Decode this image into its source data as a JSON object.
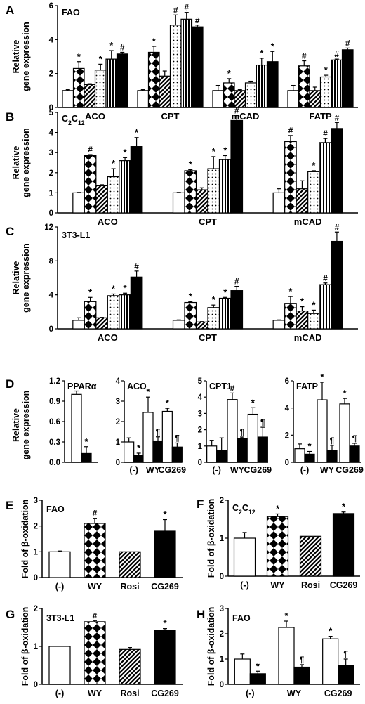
{
  "figure": {
    "background": "#ffffff",
    "ink": "#000000"
  },
  "patterns": [
    "white",
    "diamond",
    "diagonal",
    "dots",
    "vertical",
    "black"
  ],
  "markers": {
    "hash": "#",
    "star": "*",
    "para": "¶"
  },
  "chart_data": [
    {
      "id": "A",
      "type": "bar",
      "panel_label": "A",
      "inset_label": "FAO",
      "ylabel": [
        "Relative",
        "gene expression"
      ],
      "ylim": [
        0,
        6
      ],
      "yticks": [
        0,
        2,
        4,
        6
      ],
      "categories": [
        "ACO",
        "CPT",
        "mCAD",
        "FATP"
      ],
      "values": [
        [
          1.0,
          2.3,
          1.35,
          2.2,
          2.85,
          3.15
        ],
        [
          1.0,
          3.25,
          1.85,
          4.85,
          5.2,
          4.75
        ],
        [
          1.0,
          1.45,
          1.0,
          1.45,
          2.5,
          2.7
        ],
        [
          1.0,
          2.45,
          1.0,
          1.8,
          2.8,
          3.4
        ]
      ],
      "errors": [
        [
          0.05,
          0.4,
          0.05,
          0.35,
          0.5,
          0.1
        ],
        [
          0.05,
          0.35,
          0.3,
          0.6,
          0.4,
          0.1
        ],
        [
          0.3,
          0.25,
          0.05,
          0.1,
          0.4,
          0.6
        ],
        [
          0.3,
          0.3,
          0.2,
          0.1,
          0.05,
          0.1
        ]
      ],
      "markers": [
        [
          "",
          "*",
          "",
          "*",
          "*",
          "#"
        ],
        [
          "",
          "*",
          "",
          "#",
          "#",
          "#"
        ],
        [
          "",
          "*",
          "",
          "",
          "*",
          "*"
        ],
        [
          "",
          "#",
          "",
          "*",
          "#",
          "#"
        ]
      ]
    },
    {
      "id": "B",
      "type": "bar",
      "panel_label": "B",
      "inset_label": "C2C12",
      "ylabel": [
        "Relative",
        "gene expression"
      ],
      "ylim": [
        0,
        5
      ],
      "yticks": [
        0,
        1,
        2,
        3,
        4,
        5
      ],
      "categories": [
        "ACO",
        "CPT",
        "mCAD"
      ],
      "values": [
        [
          1.0,
          2.85,
          1.35,
          1.8,
          2.6,
          3.3
        ],
        [
          1.0,
          2.1,
          1.15,
          2.2,
          2.65,
          4.6
        ],
        [
          1.0,
          3.55,
          1.2,
          2.05,
          3.5,
          4.2
        ]
      ],
      "errors": [
        [
          0.02,
          0.05,
          0.05,
          0.4,
          0.15,
          0.45
        ],
        [
          0.02,
          0.05,
          0.1,
          0.6,
          0.2,
          0.25
        ],
        [
          0.2,
          0.3,
          0.4,
          0.05,
          0.2,
          0.3
        ]
      ],
      "markers": [
        [
          "",
          "#",
          "",
          "*",
          "*",
          "*"
        ],
        [
          "",
          "*",
          "",
          "*",
          "*",
          "#"
        ],
        [
          "",
          "#",
          "",
          "*",
          "#",
          "#"
        ]
      ]
    },
    {
      "id": "C",
      "type": "bar",
      "panel_label": "C",
      "inset_label": "3T3-L1",
      "ylabel": [
        "Relative",
        "gene expression"
      ],
      "ylim": [
        0,
        12
      ],
      "yticks": [
        0,
        4,
        8,
        12
      ],
      "categories": [
        "ACO",
        "CPT",
        "mCAD"
      ],
      "values": [
        [
          1.0,
          3.2,
          1.3,
          3.9,
          4.0,
          6.1
        ],
        [
          1.0,
          3.1,
          0.8,
          2.5,
          3.6,
          4.5
        ],
        [
          1.0,
          3.0,
          2.1,
          1.8,
          5.2,
          10.3
        ]
      ],
      "errors": [
        [
          0.3,
          0.5,
          0.05,
          0.2,
          0.2,
          0.7
        ],
        [
          0.05,
          0.1,
          0.05,
          0.3,
          0.1,
          0.5
        ],
        [
          0.05,
          0.8,
          0.5,
          0.4,
          0.2,
          1.1
        ]
      ],
      "markers": [
        [
          "",
          "*",
          "",
          "*",
          "*",
          "#"
        ],
        [
          "",
          "*",
          "",
          "*",
          "*",
          "#"
        ],
        [
          "",
          "*",
          "*",
          "*",
          "#",
          "#"
        ]
      ]
    }
  ],
  "panel_d": {
    "panel_label": "D",
    "ylabel": [
      "Relative",
      "gene expression"
    ],
    "categories": [
      "(-)",
      "WY",
      "CG269"
    ],
    "subpanels": [
      {
        "id": "D1",
        "title": "PPARα",
        "ylim": [
          0,
          1.2
        ],
        "yticks": [
          "0.0",
          "0.3",
          "0.6",
          "0.9",
          "1.2"
        ],
        "values": [
          [
            1.0,
            0.13
          ]
        ],
        "errors": [
          [
            0.05,
            0.1
          ]
        ],
        "markers": [
          [
            "",
            "*"
          ]
        ],
        "show_categories": false
      },
      {
        "id": "D2",
        "title": "ACO",
        "ylim": [
          0,
          4
        ],
        "yticks": [
          "0",
          "1",
          "2",
          "3",
          "4"
        ],
        "values": [
          [
            1.0,
            0.35
          ],
          [
            2.45,
            1.05
          ],
          [
            2.5,
            0.75
          ]
        ],
        "errors": [
          [
            0.2,
            0.1
          ],
          [
            0.75,
            0.2
          ],
          [
            0.15,
            0.2
          ]
        ],
        "markers": [
          [
            "",
            "*"
          ],
          [
            "*",
            "¶"
          ],
          [
            "*",
            "¶"
          ]
        ],
        "show_categories": true
      },
      {
        "id": "D3",
        "title": "CPT1",
        "ylim": [
          0,
          5
        ],
        "yticks": [
          "0",
          "1",
          "2",
          "3",
          "4",
          "5"
        ],
        "values": [
          [
            1.0,
            0.75
          ],
          [
            3.85,
            1.45
          ],
          [
            2.95,
            1.55
          ]
        ],
        "errors": [
          [
            0.35,
            0.75
          ],
          [
            0.4,
            0.1
          ],
          [
            0.4,
            0.6
          ]
        ],
        "markers": [
          [
            "",
            ""
          ],
          [
            "#",
            "¶"
          ],
          [
            "*",
            "¶"
          ]
        ],
        "show_categories": true
      },
      {
        "id": "D4",
        "title": "FATP",
        "ylim": [
          0,
          6
        ],
        "yticks": [
          "0",
          "2",
          "4",
          "6"
        ],
        "values": [
          [
            1.0,
            0.6
          ],
          [
            4.6,
            0.85
          ],
          [
            4.3,
            1.2
          ]
        ],
        "errors": [
          [
            0.35,
            0.2
          ],
          [
            1.3,
            0.4
          ],
          [
            0.4,
            0.2
          ]
        ],
        "markers": [
          [
            "",
            "*"
          ],
          [
            "*",
            "¶"
          ],
          [
            "*",
            "¶"
          ]
        ],
        "show_categories": true
      }
    ]
  },
  "beta_panels": [
    {
      "id": "E",
      "panel_label": "E",
      "inset_label": "FAO",
      "ylabel": "Fold of β-oxidation",
      "ylim": [
        0,
        3
      ],
      "yticks": [
        "0",
        "1",
        "2",
        "3"
      ],
      "categories": [
        "(-)",
        "WY",
        "Rosi",
        "CG269"
      ],
      "values": [
        1.0,
        2.1,
        1.0,
        1.8
      ],
      "errors": [
        0.03,
        0.2,
        0.0,
        0.45
      ],
      "markers": [
        "",
        "#",
        "",
        "*"
      ],
      "patterns": [
        "white",
        "diamond",
        "diagonal",
        "black"
      ]
    },
    {
      "id": "F",
      "panel_label": "F",
      "inset_label": "C2C12",
      "ylabel": "Fold of β-oxidation",
      "ylim": [
        0,
        2
      ],
      "yticks": [
        "0",
        "1",
        "2"
      ],
      "categories": [
        "(-)",
        "WY",
        "Rosi",
        "CG269"
      ],
      "values": [
        1.0,
        1.57,
        1.05,
        1.65
      ],
      "errors": [
        0.15,
        0.07,
        0.0,
        0.04
      ],
      "markers": [
        "",
        "*",
        "",
        "*"
      ],
      "patterns": [
        "white",
        "diamond",
        "diagonal",
        "black"
      ]
    },
    {
      "id": "G",
      "panel_label": "G",
      "inset_label": "3T3-L1",
      "ylabel": "Fold of β-oxidation",
      "ylim": [
        0,
        2
      ],
      "yticks": [
        "0",
        "1",
        "2"
      ],
      "categories": [
        "(-)",
        "WY",
        "Rosi",
        "CG269"
      ],
      "values": [
        1.0,
        1.65,
        0.92,
        1.42
      ],
      "errors": [
        0.0,
        0.03,
        0.05,
        0.05
      ],
      "markers": [
        "",
        "#",
        "",
        "*"
      ],
      "patterns": [
        "white",
        "diamond",
        "diagonal",
        "black"
      ]
    }
  ],
  "panel_h": {
    "id": "H",
    "type": "bar",
    "panel_label": "H",
    "inset_label": "FAO",
    "ylabel": "Fold of β-oxidation",
    "ylim": [
      0,
      3
    ],
    "yticks": [
      "0",
      "1",
      "2",
      "3"
    ],
    "categories": [
      "(-)",
      "WY",
      "CG269"
    ],
    "values": [
      [
        1.0,
        0.42
      ],
      [
        2.25,
        0.68
      ],
      [
        1.8,
        0.75
      ]
    ],
    "errors": [
      [
        0.2,
        0.1
      ],
      [
        0.25,
        0.1
      ],
      [
        0.1,
        0.25
      ]
    ],
    "markers": [
      [
        "",
        "*"
      ],
      [
        "*",
        "¶"
      ],
      [
        "*",
        "¶"
      ]
    ]
  }
}
